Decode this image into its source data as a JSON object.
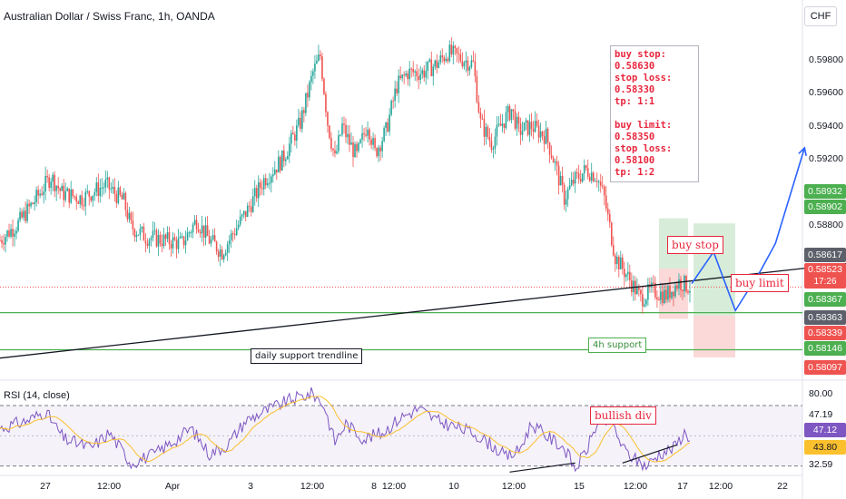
{
  "header": {
    "title": "Australian Dollar / Swiss Franc, 1h, OANDA",
    "currency": "CHF"
  },
  "colors": {
    "up": "#26a69a",
    "down": "#ef5350",
    "trendline": "#131722",
    "support": "#4caf50",
    "projection": "#2962ff",
    "rsi": "#7e57c2",
    "rsi_ma": "#fbc02d"
  },
  "plan_note": {
    "lines": [
      "buy stop: 0.58630",
      "stop loss: 0.58330",
      "tp: 1:1",
      "",
      "buy limit: 0.58350",
      "stop loss: 0.58100",
      "tp: 1:2"
    ]
  },
  "annotations": {
    "trendline": "daily support trendline",
    "support": "4h support",
    "buy_stop": "buy stop",
    "buy_limit": "buy limit",
    "divergence": "bullish div"
  },
  "rsi": {
    "title": "RSI (14, close)"
  },
  "price_tags": [
    {
      "value": "0.58932",
      "color": "#4caf50"
    },
    {
      "value": "0.58902",
      "color": "#4caf50"
    },
    {
      "value": "0.58617",
      "color": "#5d606b"
    },
    {
      "value": "0.58523",
      "sub": "17:26",
      "color": "#ef5350"
    },
    {
      "value": "0.58367",
      "color": "#4caf50"
    },
    {
      "value": "0.58363",
      "color": "#5d606b"
    },
    {
      "value": "0.58339",
      "color": "#ef5350"
    },
    {
      "value": "0.58146",
      "color": "#4caf50"
    },
    {
      "value": "0.58097",
      "color": "#ef5350"
    }
  ],
  "rsi_tags": [
    {
      "value": "47.12",
      "color": "#7e57c2"
    },
    {
      "value": "43.80",
      "color": "#fbc02d"
    }
  ],
  "chart_data": [
    {
      "type": "candlestick",
      "title": "Australian Dollar / Swiss Franc, 1h, OANDA",
      "y_axis_ticks": [
        "0.59800",
        "0.59600",
        "0.59400",
        "0.59200",
        "0.58800"
      ],
      "x_axis_ticks": [
        "27",
        "12:00",
        "Apr",
        "3",
        "12:00",
        "8",
        "12:00",
        "10",
        "12:00",
        "15",
        "12:00",
        "17",
        "12:00",
        "22"
      ],
      "ylim": [
        0.5797,
        0.6007
      ],
      "candle_count": 380,
      "close_path": [
        [
          0,
          0.588
        ],
        [
          10,
          0.589
        ],
        [
          20,
          0.5905
        ],
        [
          28,
          0.5918
        ],
        [
          34,
          0.5908
        ],
        [
          45,
          0.5905
        ],
        [
          58,
          0.5913
        ],
        [
          68,
          0.5903
        ],
        [
          72,
          0.5888
        ],
        [
          80,
          0.5882
        ],
        [
          90,
          0.588
        ],
        [
          100,
          0.5878
        ],
        [
          108,
          0.5892
        ],
        [
          115,
          0.588
        ],
        [
          122,
          0.5873
        ],
        [
          128,
          0.5884
        ],
        [
          136,
          0.5898
        ],
        [
          145,
          0.5916
        ],
        [
          155,
          0.5928
        ],
        [
          165,
          0.595
        ],
        [
          172,
          0.598
        ],
        [
          176,
          0.599
        ],
        [
          180,
          0.595
        ],
        [
          184,
          0.5928
        ],
        [
          188,
          0.5948
        ],
        [
          192,
          0.5938
        ],
        [
          196,
          0.593
        ],
        [
          202,
          0.595
        ],
        [
          206,
          0.5932
        ],
        [
          212,
          0.5945
        ],
        [
          218,
          0.5972
        ],
        [
          224,
          0.598
        ],
        [
          232,
          0.598
        ],
        [
          240,
          0.5985
        ],
        [
          246,
          0.5992
        ],
        [
          254,
          0.5988
        ],
        [
          260,
          0.5985
        ],
        [
          264,
          0.595
        ],
        [
          270,
          0.5938
        ],
        [
          276,
          0.595
        ],
        [
          281,
          0.5958
        ],
        [
          285,
          0.5945
        ],
        [
          292,
          0.5948
        ],
        [
          300,
          0.5942
        ],
        [
          305,
          0.5925
        ],
        [
          310,
          0.5905
        ],
        [
          315,
          0.5915
        ],
        [
          322,
          0.5922
        ],
        [
          328,
          0.5918
        ],
        [
          332,
          0.5905
        ],
        [
          338,
          0.587
        ],
        [
          345,
          0.5858
        ],
        [
          352,
          0.5845
        ],
        [
          358,
          0.585
        ],
        [
          366,
          0.5847
        ],
        [
          373,
          0.5855
        ],
        [
          379,
          0.5852
        ]
      ],
      "horizontal_levels": [
        0.58367,
        0.58146
      ],
      "trendline": {
        "from": [
          -5,
          0.5809
        ],
        "to": [
          465,
          0.5866
        ]
      },
      "projection_path": [
        [
          380,
          0.5854
        ],
        [
          392,
          0.5873
        ],
        [
          404,
          0.5838
        ],
        [
          418,
          0.5862
        ],
        [
          426,
          0.5878
        ],
        [
          442,
          0.5935
        ]
      ],
      "buy_stop_zone": {
        "entry": 0.5863,
        "stop": 0.5833,
        "target": 0.5893
      },
      "buy_limit_zone": {
        "entry": 0.5835,
        "stop": 0.581,
        "target": 0.589
      }
    },
    {
      "type": "line",
      "title": "RSI (14, close)",
      "y_axis_ticks": [
        "80.00",
        "47.19",
        "32.59"
      ],
      "ylim": [
        25,
        85
      ],
      "bands": [
        70,
        30
      ],
      "rsi_path": [
        [
          0,
          55
        ],
        [
          15,
          60
        ],
        [
          25,
          66
        ],
        [
          35,
          48
        ],
        [
          50,
          42
        ],
        [
          60,
          52
        ],
        [
          72,
          32
        ],
        [
          85,
          38
        ],
        [
          95,
          46
        ],
        [
          105,
          55
        ],
        [
          115,
          38
        ],
        [
          125,
          44
        ],
        [
          135,
          60
        ],
        [
          145,
          66
        ],
        [
          160,
          74
        ],
        [
          172,
          78
        ],
        [
          178,
          70
        ],
        [
          184,
          46
        ],
        [
          190,
          58
        ],
        [
          200,
          48
        ],
        [
          210,
          52
        ],
        [
          220,
          62
        ],
        [
          230,
          68
        ],
        [
          240,
          60
        ],
        [
          250,
          56
        ],
        [
          260,
          52
        ],
        [
          270,
          44
        ],
        [
          278,
          36
        ],
        [
          285,
          40
        ],
        [
          292,
          58
        ],
        [
          300,
          50
        ],
        [
          310,
          42
        ],
        [
          316,
          28
        ],
        [
          322,
          40
        ],
        [
          328,
          58
        ],
        [
          336,
          60
        ],
        [
          342,
          42
        ],
        [
          348,
          35
        ],
        [
          355,
          30
        ],
        [
          362,
          38
        ],
        [
          370,
          42
        ],
        [
          376,
          52
        ],
        [
          380,
          48
        ]
      ],
      "divergence_lines": [
        [
          [
            280,
            26
          ],
          [
            316,
            32
          ]
        ],
        [
          [
            342,
            32
          ],
          [
            372,
            44
          ]
        ]
      ]
    }
  ]
}
